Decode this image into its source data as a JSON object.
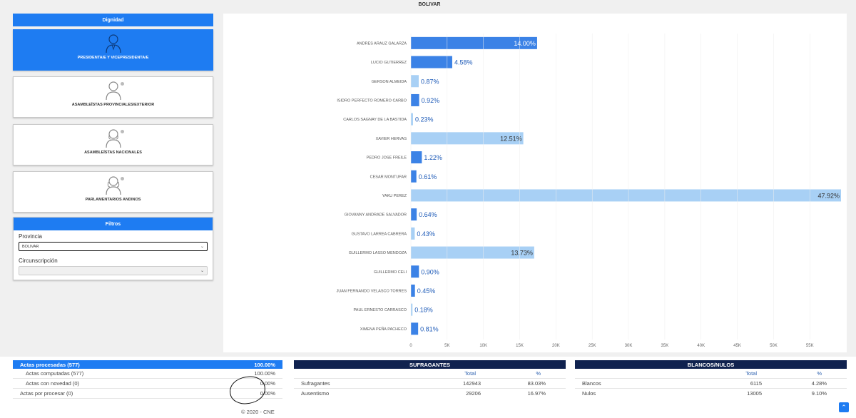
{
  "page_title": "BOLIVAR",
  "dignidad": {
    "header": "Dignidad",
    "cards": [
      {
        "label": "PRESIDENTA/E Y VICEPRESIDENTA/E",
        "active": true
      },
      {
        "label": "ASAMBLEÍSTAS PROVINCIALES/EXTERIOR",
        "active": false
      },
      {
        "label": "ASAMBLEÍSTAS NACIONALES",
        "active": false
      },
      {
        "label": "PARLAMENTARIOS ANDINOS",
        "active": false
      }
    ]
  },
  "filtros": {
    "header": "Filtros",
    "provincia_label": "Provincia",
    "provincia_value": "BOLIVAR",
    "circunscripcion_label": "Circunscripción",
    "circunscripcion_value": ""
  },
  "chart_data": {
    "type": "bar",
    "orientation": "horizontal",
    "title": "BOLIVAR",
    "categories": [
      "ANDRES ARAUZ GALARZA",
      "LUCIO GUTIERREZ",
      "GERSON ALMEIDA",
      "ISIDRO PERFECTO ROMERO CARBO",
      "CARLOS SAGNAY DE LA BASTIDA",
      "XAVIER HERVAS",
      "PEDRO JOSE FREILE",
      "CESAR MONTUFAR",
      "YAKU PEREZ",
      "GIOVANNY ANDRADE SALVADOR",
      "GUSTAVO LARREA CABRERA",
      "GUILLERMO LASSO MENDOZA",
      "GUILLERMO CELI",
      "JUAN FERNANDO VELASCO TORRES",
      "PAUL ERNESTO CARRASCO",
      "XIMENA PEÑA PACHECO"
    ],
    "values": [
      17400,
      5700,
      1080,
      1140,
      290,
      15500,
      1510,
      760,
      59300,
      800,
      530,
      17000,
      1110,
      560,
      220,
      1000
    ],
    "labels": [
      "14.00%",
      "4.58%",
      "0.87%",
      "0.92%",
      "0.23%",
      "12.51%",
      "1.22%",
      "0.61%",
      "47.92%",
      "0.64%",
      "0.43%",
      "13.73%",
      "0.90%",
      "0.45%",
      "0.18%",
      "0.81%"
    ],
    "colors": [
      "#3b82e6",
      "#3b82e6",
      "#a8d0f5",
      "#3b82e6",
      "#a8d0f5",
      "#a8d0f5",
      "#3b82e6",
      "#3b82e6",
      "#a8d0f5",
      "#3b82e6",
      "#a8d0f5",
      "#a8d0f5",
      "#3b82e6",
      "#3b82e6",
      "#a8d0f5",
      "#3b82e6"
    ],
    "x_ticks": [
      "0",
      "5K",
      "10K",
      "15K",
      "20K",
      "25K",
      "30K",
      "35K",
      "40K",
      "45K",
      "50K",
      "55K"
    ],
    "xlim": [
      0,
      59300
    ]
  },
  "actas": {
    "header_label": "Actas procesadas (577)",
    "header_value": "100.00%",
    "rows": [
      {
        "label": "Actas computadas (577)",
        "value": "100.00%"
      },
      {
        "label": "Actas con novedad (0)",
        "value": "0.00%"
      },
      {
        "label": "Actas por procesar (0)",
        "value": "0.00%"
      }
    ]
  },
  "sufragantes": {
    "header": "SUFRAGANTES",
    "col_total": "Total",
    "col_pct": "%",
    "rows": [
      {
        "label": "Sufragantes",
        "total": "142943",
        "pct": "83.03%"
      },
      {
        "label": "Ausentismo",
        "total": "29206",
        "pct": "16.97%"
      }
    ]
  },
  "blancos": {
    "header": "BLANCOS/NULOS",
    "col_total": "Total",
    "col_pct": "%",
    "rows": [
      {
        "label": "Blancos",
        "total": "6115",
        "pct": "4.28%"
      },
      {
        "label": "Nulos",
        "total": "13005",
        "pct": "9.10%"
      }
    ]
  },
  "footer": "© 2020 - CNE",
  "colors": {
    "primary": "#1e7cf2",
    "navy": "#10224f"
  }
}
